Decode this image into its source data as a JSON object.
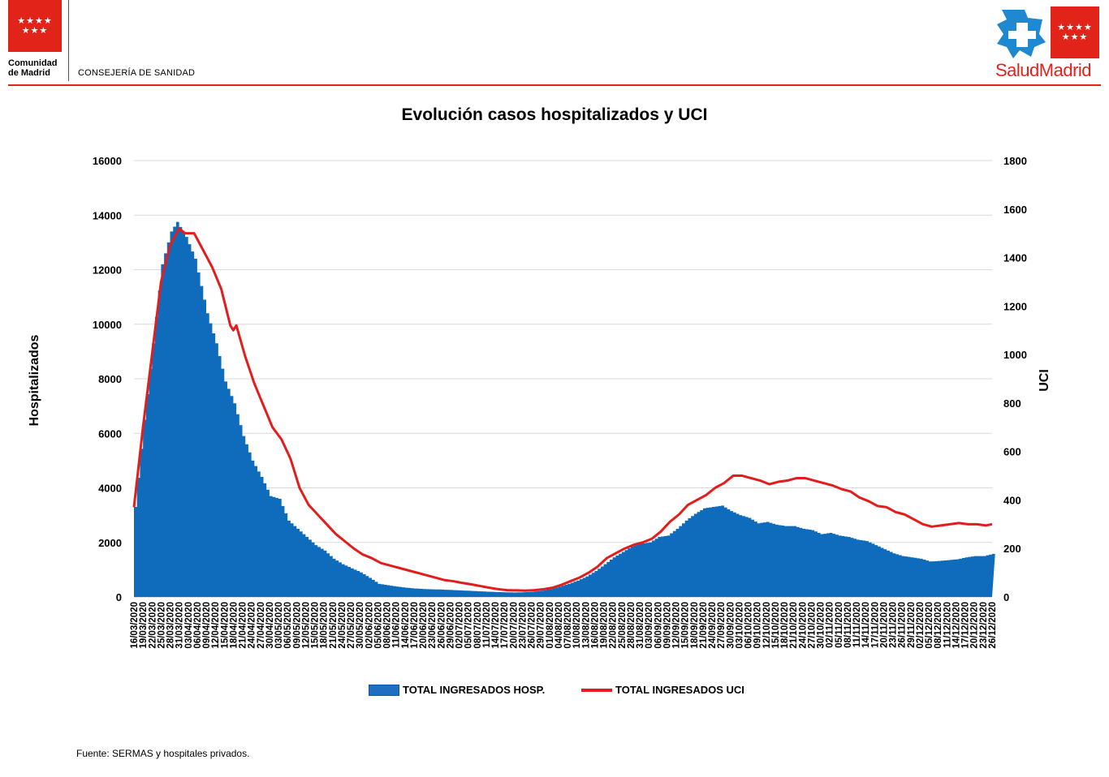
{
  "header": {
    "left_logo_line1": "Comunidad",
    "left_logo_line2": "de Madrid",
    "department": "CONSEJERÍA DE SANIDAD",
    "right_logo_part1": "Salud",
    "right_logo_part2": "Madrid",
    "brand_red": "#e2231a",
    "brand_blue": "#1e88d0"
  },
  "chart_data": {
    "type": "area+line",
    "title": "Evolución casos hospitalizados y UCI",
    "ylabel_left": "Hospitalizados",
    "ylabel_right": "UCI",
    "ylim_left": [
      0,
      16000
    ],
    "ylim_right": [
      0,
      1800
    ],
    "yticks_left": [
      "0",
      "2000",
      "4000",
      "6000",
      "8000",
      "10000",
      "12000",
      "14000",
      "16000"
    ],
    "yticks_right": [
      "0",
      "200",
      "400",
      "600",
      "800",
      "1000",
      "1200",
      "1400",
      "1600",
      "1800"
    ],
    "x_start": "16/03/2020",
    "x_end": "26/12/2020",
    "x_tick_labels": [
      "16/03/2020",
      "19/03/2020",
      "22/03/2020",
      "25/03/2020",
      "28/03/2020",
      "31/03/2020",
      "03/04/2020",
      "06/04/2020",
      "09/04/2020",
      "12/04/2020",
      "15/04/2020",
      "18/04/2020",
      "21/04/2020",
      "24/04/2020",
      "27/04/2020",
      "30/04/2020",
      "03/05/2020",
      "06/05/2020",
      "09/05/2020",
      "12/05/2020",
      "15/05/2020",
      "18/05/2020",
      "21/05/2020",
      "24/05/2020",
      "27/05/2020",
      "30/05/2020",
      "02/06/2020",
      "05/06/2020",
      "08/06/2020",
      "11/06/2020",
      "14/06/2020",
      "17/06/2020",
      "20/06/2020",
      "23/06/2020",
      "26/06/2020",
      "29/06/2020",
      "02/07/2020",
      "05/07/2020",
      "08/07/2020",
      "11/07/2020",
      "14/07/2020",
      "17/07/2020",
      "20/07/2020",
      "23/07/2020",
      "26/07/2020",
      "29/07/2020",
      "01/08/2020",
      "04/08/2020",
      "07/08/2020",
      "10/08/2020",
      "13/08/2020",
      "16/08/2020",
      "19/08/2020",
      "22/08/2020",
      "25/08/2020",
      "28/08/2020",
      "31/08/2020",
      "03/09/2020",
      "06/09/2020",
      "09/09/2020",
      "12/09/2020",
      "15/09/2020",
      "18/09/2020",
      "21/09/2020",
      "24/09/2020",
      "27/09/2020",
      "30/09/2020",
      "03/10/2020",
      "06/10/2020",
      "09/10/2020",
      "12/10/2020",
      "15/10/2020",
      "18/10/2020",
      "21/10/2020",
      "24/10/2020",
      "27/10/2020",
      "30/10/2020",
      "02/11/2020",
      "05/11/2020",
      "08/11/2020",
      "11/11/2020",
      "14/11/2020",
      "17/11/2020",
      "20/11/2020",
      "23/11/2020",
      "26/11/2020",
      "29/11/2020",
      "02/12/2020",
      "05/12/2020",
      "08/12/2020",
      "11/12/2020",
      "14/12/2020",
      "17/12/2020",
      "20/12/2020",
      "23/12/2020",
      "26/12/2020"
    ],
    "grid": true,
    "legend_position": "bottom",
    "series": [
      {
        "name": "TOTAL INGRESADOS HOSP.",
        "type": "area",
        "axis": "left",
        "color": "#0f6cbd",
        "keypoints": [
          [
            "16/03/2020",
            3300
          ],
          [
            "19/03/2020",
            6500
          ],
          [
            "22/03/2020",
            9300
          ],
          [
            "25/03/2020",
            12200
          ],
          [
            "28/03/2020",
            13400
          ],
          [
            "30/03/2020",
            13750
          ],
          [
            "02/04/2020",
            13200
          ],
          [
            "05/04/2020",
            12400
          ],
          [
            "09/04/2020",
            10400
          ],
          [
            "12/04/2020",
            9300
          ],
          [
            "15/04/2020",
            7900
          ],
          [
            "18/04/2020",
            7100
          ],
          [
            "21/04/2020",
            5900
          ],
          [
            "24/04/2020",
            5000
          ],
          [
            "27/04/2020",
            4400
          ],
          [
            "30/04/2020",
            3700
          ],
          [
            "03/05/2020",
            3600
          ],
          [
            "06/05/2020",
            2800
          ],
          [
            "09/05/2020",
            2500
          ],
          [
            "12/05/2020",
            2200
          ],
          [
            "15/05/2020",
            1900
          ],
          [
            "18/05/2020",
            1700
          ],
          [
            "21/05/2020",
            1400
          ],
          [
            "24/05/2020",
            1200
          ],
          [
            "27/05/2020",
            1050
          ],
          [
            "30/05/2020",
            900
          ],
          [
            "02/06/2020",
            700
          ],
          [
            "05/06/2020",
            480
          ],
          [
            "08/06/2020",
            430
          ],
          [
            "11/06/2020",
            380
          ],
          [
            "14/06/2020",
            340
          ],
          [
            "17/06/2020",
            310
          ],
          [
            "20/06/2020",
            290
          ],
          [
            "26/06/2020",
            270
          ],
          [
            "02/07/2020",
            240
          ],
          [
            "08/07/2020",
            210
          ],
          [
            "14/07/2020",
            180
          ],
          [
            "17/07/2020",
            170
          ],
          [
            "20/07/2020",
            165
          ],
          [
            "23/07/2020",
            170
          ],
          [
            "26/07/2020",
            190
          ],
          [
            "29/07/2020",
            230
          ],
          [
            "01/08/2020",
            290
          ],
          [
            "04/08/2020",
            380
          ],
          [
            "07/08/2020",
            480
          ],
          [
            "10/08/2020",
            600
          ],
          [
            "13/08/2020",
            750
          ],
          [
            "16/08/2020",
            950
          ],
          [
            "19/08/2020",
            1200
          ],
          [
            "22/08/2020",
            1450
          ],
          [
            "25/08/2020",
            1650
          ],
          [
            "28/08/2020",
            1850
          ],
          [
            "31/08/2020",
            1950
          ],
          [
            "03/09/2020",
            2000
          ],
          [
            "06/09/2020",
            2200
          ],
          [
            "09/09/2020",
            2250
          ],
          [
            "12/09/2020",
            2500
          ],
          [
            "15/09/2020",
            2800
          ],
          [
            "18/09/2020",
            3050
          ],
          [
            "21/09/2020",
            3250
          ],
          [
            "24/09/2020",
            3300
          ],
          [
            "27/09/2020",
            3350
          ],
          [
            "30/09/2020",
            3150
          ],
          [
            "03/10/2020",
            3000
          ],
          [
            "06/10/2020",
            2900
          ],
          [
            "09/10/2020",
            2700
          ],
          [
            "12/10/2020",
            2750
          ],
          [
            "15/10/2020",
            2650
          ],
          [
            "18/10/2020",
            2600
          ],
          [
            "21/10/2020",
            2600
          ],
          [
            "24/10/2020",
            2500
          ],
          [
            "27/10/2020",
            2450
          ],
          [
            "30/10/2020",
            2300
          ],
          [
            "02/11/2020",
            2350
          ],
          [
            "05/11/2020",
            2250
          ],
          [
            "08/11/2020",
            2200
          ],
          [
            "11/11/2020",
            2100
          ],
          [
            "14/11/2020",
            2050
          ],
          [
            "17/11/2020",
            1900
          ],
          [
            "20/11/2020",
            1750
          ],
          [
            "23/11/2020",
            1600
          ],
          [
            "26/11/2020",
            1500
          ],
          [
            "29/11/2020",
            1450
          ],
          [
            "02/12/2020",
            1400
          ],
          [
            "05/12/2020",
            1300
          ],
          [
            "08/12/2020",
            1320
          ],
          [
            "11/12/2020",
            1350
          ],
          [
            "14/12/2020",
            1380
          ],
          [
            "17/12/2020",
            1450
          ],
          [
            "20/12/2020",
            1500
          ],
          [
            "23/12/2020",
            1500
          ],
          [
            "26/12/2020",
            1580
          ]
        ]
      },
      {
        "name": "TOTAL INGRESADOS UCI",
        "type": "line",
        "axis": "right",
        "color": "#e31c1c",
        "keypoints": [
          [
            "16/03/2020",
            370
          ],
          [
            "19/03/2020",
            700
          ],
          [
            "22/03/2020",
            1000
          ],
          [
            "25/03/2020",
            1300
          ],
          [
            "28/03/2020",
            1450
          ],
          [
            "31/03/2020",
            1520
          ],
          [
            "02/04/2020",
            1500
          ],
          [
            "05/04/2020",
            1500
          ],
          [
            "08/04/2020",
            1430
          ],
          [
            "11/04/2020",
            1360
          ],
          [
            "14/04/2020",
            1270
          ],
          [
            "17/04/2020",
            1120
          ],
          [
            "18/04/2020",
            1100
          ],
          [
            "19/04/2020",
            1120
          ],
          [
            "22/04/2020",
            990
          ],
          [
            "25/04/2020",
            880
          ],
          [
            "28/04/2020",
            790
          ],
          [
            "01/05/2020",
            700
          ],
          [
            "04/05/2020",
            650
          ],
          [
            "07/05/2020",
            570
          ],
          [
            "10/05/2020",
            450
          ],
          [
            "13/05/2020",
            380
          ],
          [
            "16/05/2020",
            340
          ],
          [
            "19/05/2020",
            300
          ],
          [
            "22/05/2020",
            260
          ],
          [
            "25/05/2020",
            230
          ],
          [
            "28/05/2020",
            200
          ],
          [
            "31/05/2020",
            175
          ],
          [
            "03/06/2020",
            160
          ],
          [
            "06/06/2020",
            140
          ],
          [
            "09/06/2020",
            130
          ],
          [
            "12/06/2020",
            120
          ],
          [
            "15/06/2020",
            110
          ],
          [
            "18/06/2020",
            100
          ],
          [
            "21/06/2020",
            90
          ],
          [
            "24/06/2020",
            80
          ],
          [
            "27/06/2020",
            70
          ],
          [
            "30/06/2020",
            65
          ],
          [
            "03/07/2020",
            58
          ],
          [
            "06/07/2020",
            52
          ],
          [
            "09/07/2020",
            45
          ],
          [
            "12/07/2020",
            38
          ],
          [
            "15/07/2020",
            32
          ],
          [
            "18/07/2020",
            28
          ],
          [
            "21/07/2020",
            27
          ],
          [
            "24/07/2020",
            26
          ],
          [
            "27/07/2020",
            28
          ],
          [
            "30/07/2020",
            32
          ],
          [
            "02/08/2020",
            38
          ],
          [
            "05/08/2020",
            50
          ],
          [
            "08/08/2020",
            65
          ],
          [
            "11/08/2020",
            80
          ],
          [
            "14/08/2020",
            100
          ],
          [
            "17/08/2020",
            125
          ],
          [
            "20/08/2020",
            160
          ],
          [
            "23/08/2020",
            180
          ],
          [
            "26/08/2020",
            200
          ],
          [
            "29/08/2020",
            215
          ],
          [
            "01/09/2020",
            225
          ],
          [
            "04/09/2020",
            240
          ],
          [
            "07/09/2020",
            270
          ],
          [
            "10/09/2020",
            310
          ],
          [
            "13/09/2020",
            340
          ],
          [
            "16/09/2020",
            380
          ],
          [
            "19/09/2020",
            400
          ],
          [
            "22/09/2020",
            420
          ],
          [
            "25/09/2020",
            450
          ],
          [
            "28/09/2020",
            470
          ],
          [
            "01/10/2020",
            500
          ],
          [
            "04/10/2020",
            500
          ],
          [
            "07/10/2020",
            490
          ],
          [
            "10/10/2020",
            480
          ],
          [
            "13/10/2020",
            465
          ],
          [
            "16/10/2020",
            475
          ],
          [
            "19/10/2020",
            480
          ],
          [
            "22/10/2020",
            490
          ],
          [
            "25/10/2020",
            490
          ],
          [
            "28/10/2020",
            480
          ],
          [
            "31/10/2020",
            470
          ],
          [
            "03/11/2020",
            460
          ],
          [
            "06/11/2020",
            445
          ],
          [
            "09/11/2020",
            435
          ],
          [
            "12/11/2020",
            410
          ],
          [
            "15/11/2020",
            395
          ],
          [
            "18/11/2020",
            375
          ],
          [
            "21/11/2020",
            370
          ],
          [
            "24/11/2020",
            350
          ],
          [
            "27/11/2020",
            340
          ],
          [
            "30/11/2020",
            320
          ],
          [
            "03/12/2020",
            300
          ],
          [
            "06/12/2020",
            290
          ],
          [
            "09/12/2020",
            295
          ],
          [
            "12/12/2020",
            300
          ],
          [
            "15/12/2020",
            305
          ],
          [
            "18/12/2020",
            300
          ],
          [
            "21/12/2020",
            300
          ],
          [
            "24/12/2020",
            295
          ],
          [
            "26/12/2020",
            300
          ]
        ]
      }
    ]
  },
  "legend": {
    "area_label": "TOTAL INGRESADOS HOSP.",
    "line_label": "TOTAL INGRESADOS UCI"
  },
  "footer": {
    "source": "Fuente: SERMAS y hospitales privados."
  }
}
